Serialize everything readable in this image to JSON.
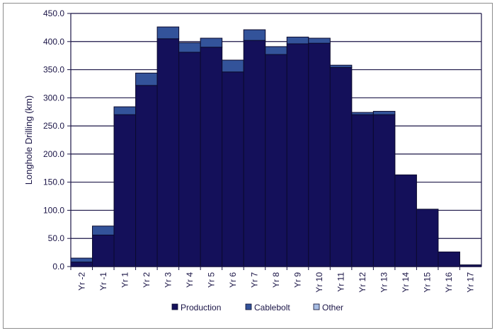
{
  "chart_data": {
    "type": "bar",
    "stacked": true,
    "title": "",
    "xlabel": "",
    "ylabel": "Longhole Drilling (km)",
    "ylim": [
      0,
      450
    ],
    "ytick_step": 50,
    "ytick_labels": [
      "0.0",
      "50.0",
      "100.0",
      "150.0",
      "200.0",
      "250.0",
      "300.0",
      "350.0",
      "400.0",
      "450.0"
    ],
    "grid": "horizontal",
    "legend_position": "bottom",
    "categories": [
      "Yr -2",
      "Yr -1",
      "Yr 1",
      "Yr 2",
      "Yr 3",
      "Yr 4",
      "Yr 5",
      "Yr 6",
      "Yr 7",
      "Yr 8",
      "Yr 9",
      "Yr 10",
      "Yr 11",
      "Yr 12",
      "Yr 13",
      "Yr 14",
      "Yr 15",
      "Yr 16",
      "Yr 17"
    ],
    "series": [
      {
        "name": "Production",
        "color": "#14105a",
        "values": [
          8,
          56,
          270,
          322,
          405,
          381,
          390,
          346,
          402,
          377,
          396,
          397,
          354,
          270,
          270,
          163,
          102,
          26,
          3
        ]
      },
      {
        "name": "Cablebolt",
        "color": "#33539a",
        "values": [
          7,
          16,
          14,
          22,
          21,
          17,
          16,
          21,
          19,
          14,
          12,
          9,
          4,
          4,
          6,
          0,
          0,
          0,
          0
        ]
      },
      {
        "name": "Other",
        "color": "#a7bde3",
        "values": [
          0,
          0,
          0,
          0,
          0,
          0,
          0,
          0,
          0,
          0,
          0,
          0,
          0,
          0,
          0,
          0,
          0,
          0,
          0
        ]
      }
    ]
  }
}
